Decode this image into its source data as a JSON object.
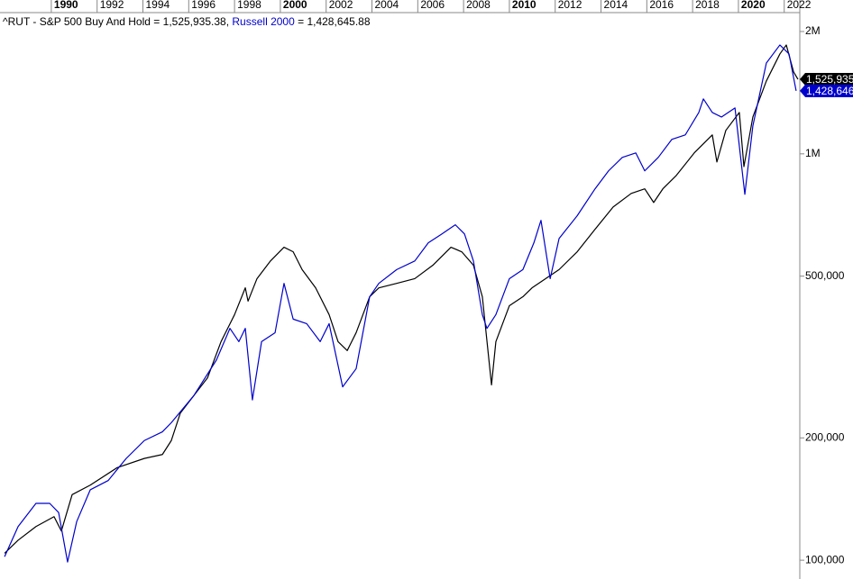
{
  "chart_data": {
    "type": "line",
    "log_scale": true,
    "grid": false,
    "legend_separator": " = ",
    "legend_delimiter": ", ",
    "xlim": [
      1987.76,
      2022.68
    ],
    "xticks": [
      1990,
      1992,
      1994,
      1996,
      1998,
      2000,
      2002,
      2004,
      2006,
      2008,
      2010,
      2012,
      2014,
      2016,
      2018,
      2020,
      2022
    ],
    "ylim": [
      89900,
      2226000
    ],
    "yticks": [
      {
        "value": 2000000,
        "label": "2M"
      },
      {
        "value": 1000000,
        "label": "1M"
      },
      {
        "value": 500000,
        "label": "500,000"
      },
      {
        "value": 200000,
        "label": "200,000"
      },
      {
        "value": 100000,
        "label": "100,000"
      }
    ],
    "series": [
      {
        "name": "^RUT - S&P 500 Buy And Hold",
        "color": "#000000",
        "current": {
          "value": 1525935.38,
          "label": "1,525,935.38",
          "axis_label": "1,525,935"
        },
        "x": [
          1987.96,
          1988.55,
          1989.33,
          1990.12,
          1990.44,
          1990.91,
          1991.7,
          1992.88,
          1994.06,
          1994.85,
          1995.24,
          1995.63,
          1996.22,
          1996.82,
          1997.41,
          1998.0,
          1998.47,
          1998.59,
          1998.98,
          1999.57,
          2000.16,
          2000.56,
          2000.95,
          2001.54,
          2002.13,
          2002.52,
          2002.92,
          2003.31,
          2003.9,
          2004.3,
          2005.08,
          2005.87,
          2006.66,
          2007.45,
          2007.92,
          2008.43,
          2008.82,
          2009.22,
          2009.41,
          2010.0,
          2010.59,
          2010.99,
          2011.58,
          2012.17,
          2012.96,
          2013.74,
          2014.53,
          2015.32,
          2015.91,
          2016.3,
          2016.7,
          2017.29,
          2018.07,
          2018.86,
          2019.06,
          2019.45,
          2020.04,
          2020.24,
          2020.63,
          2021.22,
          2021.81,
          2022.09,
          2022.41,
          2022.6
        ],
        "values": [
          104000,
          112000,
          121000,
          128000,
          118000,
          145000,
          153000,
          169000,
          178000,
          182000,
          197000,
          230000,
          254000,
          281000,
          345000,
          402000,
          468000,
          434000,
          493000,
          545000,
          589000,
          574000,
          519000,
          468000,
          402000,
          345000,
          328000,
          363000,
          445000,
          468000,
          480000,
          493000,
          532000,
          589000,
          574000,
          532000,
          445000,
          270000,
          345000,
          423000,
          445000,
          468000,
          493000,
          519000,
          574000,
          652000,
          740000,
          799000,
          820000,
          759000,
          820000,
          885000,
          1005000,
          1113000,
          955000,
          1142000,
          1264000,
          930000,
          1232000,
          1511000,
          1761000,
          1853000,
          1590000,
          1525935.38
        ]
      },
      {
        "name": "Russell 2000",
        "color": "#0000cc",
        "current": {
          "value": 1428645.88,
          "label": "1,428,645.88",
          "axis_label": "1,428,646"
        },
        "x": [
          1987.96,
          1988.55,
          1989.33,
          1989.93,
          1990.32,
          1990.71,
          1991.11,
          1991.7,
          1992.48,
          1993.27,
          1994.06,
          1994.85,
          1995.24,
          1996.22,
          1997.21,
          1997.8,
          1998.19,
          1998.47,
          1998.78,
          1999.18,
          1999.77,
          2000.16,
          2000.56,
          2001.15,
          2001.74,
          2002.13,
          2002.72,
          2003.31,
          2003.9,
          2004.3,
          2005.08,
          2005.87,
          2006.46,
          2007.05,
          2007.64,
          2008.04,
          2008.43,
          2008.82,
          2009.02,
          2009.41,
          2010.0,
          2010.59,
          2011.07,
          2011.38,
          2011.78,
          2012.17,
          2012.96,
          2013.74,
          2014.33,
          2014.93,
          2015.52,
          2015.91,
          2016.5,
          2017.09,
          2017.68,
          2018.27,
          2018.47,
          2018.86,
          2019.26,
          2019.85,
          2020.28,
          2020.63,
          2021.22,
          2021.81,
          2022.21,
          2022.52
        ],
        "values": [
          102000,
          121000,
          138000,
          138000,
          131000,
          99000,
          124500,
          149000,
          157000,
          178000,
          197000,
          207000,
          218000,
          254000,
          311000,
          372000,
          345000,
          372000,
          248000,
          345000,
          363000,
          480000,
          392000,
          382000,
          345000,
          382000,
          267000,
          296000,
          445000,
          480000,
          519000,
          545000,
          604000,
          635000,
          669000,
          635000,
          545000,
          402000,
          372000,
          402000,
          493000,
          519000,
          604000,
          686000,
          493000,
          619000,
          704000,
          820000,
          908000,
          980000,
          1005000,
          908000,
          980000,
          1085000,
          1113000,
          1264000,
          1365000,
          1264000,
          1232000,
          1297000,
          795000,
          1171000,
          1673000,
          1853000,
          1761000,
          1428645.88
        ]
      }
    ]
  }
}
